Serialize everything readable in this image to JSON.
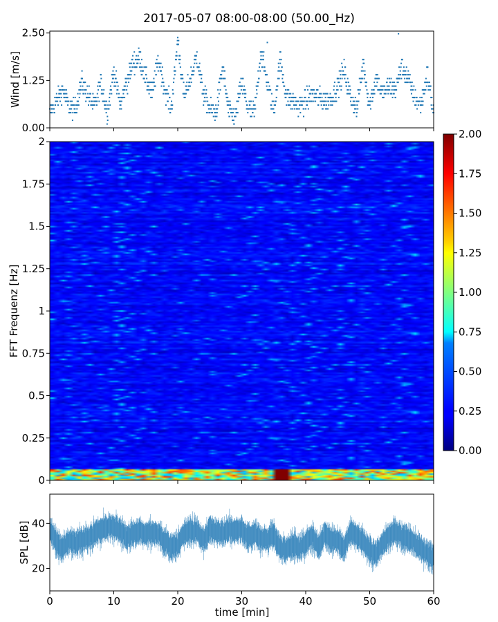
{
  "title": "2017-05-07 08:00-08:00 (50.00_Hz)",
  "chart_data": [
    {
      "type": "scatter",
      "panel": "wind",
      "ylabel": "Wind [m/s]",
      "xlim": [
        0,
        60
      ],
      "ylim": [
        0.0,
        2.55
      ],
      "yticks": [
        "0.00",
        "1.25",
        "2.50"
      ],
      "color": "#1f77b4",
      "profile": [
        0.4,
        0.7,
        1.0,
        0.55,
        0.5,
        1.2,
        0.85,
        0.55,
        1.2,
        0.4,
        1.5,
        0.6,
        1.2,
        1.7,
        1.85,
        1.3,
        0.9,
        1.8,
        1.0,
        0.5,
        2.3,
        0.8,
        1.3,
        1.9,
        0.9,
        0.5,
        0.4,
        1.6,
        0.4,
        0.3,
        1.2,
        0.5,
        0.4,
        2.0,
        1.2,
        0.4,
        1.8,
        0.8,
        0.7,
        0.6,
        0.7,
        0.9,
        0.8,
        0.7,
        0.8,
        1.1,
        1.5,
        0.8,
        0.5,
        1.7,
        0.6,
        1.3,
        0.9,
        1.1,
        1.0,
        1.6,
        1.3,
        0.8,
        0.6,
        1.4,
        0.4
      ],
      "notable_points": [
        {
          "x": 20,
          "y": 2.38
        },
        {
          "x": 34,
          "y": 2.25
        },
        {
          "x": 54.5,
          "y": 2.48
        }
      ]
    },
    {
      "type": "heatmap",
      "panel": "spectrogram",
      "ylabel": "FFT Frequenz [Hz]",
      "xlim": [
        0,
        60
      ],
      "ylim": [
        0,
        2
      ],
      "yticks": [
        "0",
        "0.25",
        "0.5",
        "0.75",
        "1",
        "1.25",
        "1.5",
        "1.75",
        "2"
      ],
      "colormap": "jet",
      "colorbar": {
        "min": 0.0,
        "max": 2.0,
        "ticks": [
          "0.00",
          "0.25",
          "0.50",
          "0.75",
          "1.00",
          "1.25",
          "1.50",
          "1.75",
          "2.00"
        ]
      },
      "typical_level": 0.25,
      "low_freq_band": {
        "freq_max": 0.06,
        "level": 1.4
      },
      "hot_spot": {
        "x": [
          35,
          38
        ],
        "freq": [
          0,
          0.06
        ],
        "level": 2.0
      }
    },
    {
      "type": "line",
      "panel": "spl",
      "ylabel": "SPL [dB]",
      "xlabel": "time [min]",
      "xlim": [
        0,
        60
      ],
      "ylim": [
        10,
        53
      ],
      "yticks": [
        "20",
        "40"
      ],
      "xticks": [
        "0",
        "10",
        "20",
        "30",
        "40",
        "50",
        "60"
      ],
      "color": "#1f77b4",
      "profile": [
        38,
        32,
        29,
        33,
        32,
        33,
        34,
        36,
        38,
        39,
        39,
        38,
        34,
        36,
        37,
        36,
        37,
        36,
        32,
        30,
        31,
        36,
        37,
        37,
        33,
        38,
        37,
        36,
        38,
        37,
        38,
        34,
        36,
        34,
        33,
        36,
        29,
        29,
        31,
        29,
        32,
        35,
        30,
        36,
        33,
        33,
        29,
        37,
        35,
        33,
        29,
        27,
        32,
        35,
        37,
        35,
        34,
        32,
        29,
        27,
        26
      ]
    }
  ]
}
